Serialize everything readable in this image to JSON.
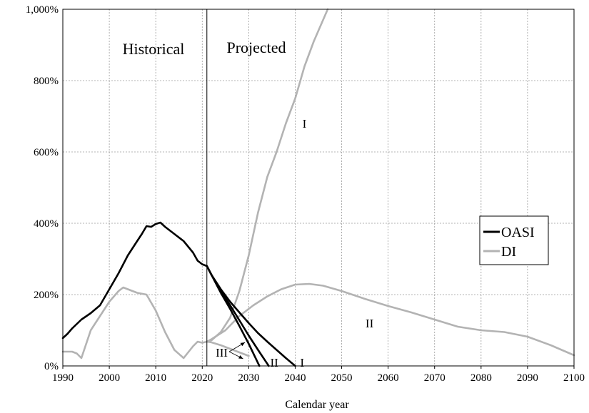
{
  "chart_data": {
    "type": "line",
    "title": "",
    "xlabel": "Calendar year",
    "ylabel": "",
    "xlim": [
      1990,
      2100
    ],
    "ylim": [
      0,
      1000
    ],
    "x_ticks": [
      "1990",
      "2000",
      "2010",
      "2020",
      "2030",
      "2040",
      "2050",
      "2060",
      "2070",
      "2080",
      "2090",
      "2100"
    ],
    "y_ticks": [
      "0%",
      "200%",
      "400%",
      "600%",
      "800%",
      "1,000%"
    ],
    "grid": true,
    "legend_position": "right",
    "legend": [
      "OASI",
      "DI"
    ],
    "region_labels": [
      "Historical",
      "Projected"
    ],
    "divider_year": 2021,
    "colors": {
      "OASI": "#000000",
      "DI": "#b3b3b3"
    },
    "series": [
      {
        "name": "OASI",
        "alternative": "historical",
        "x": [
          1990,
          1991,
          1992,
          1994,
          1996,
          1998,
          2000,
          2002,
          2004,
          2006,
          2007,
          2008,
          2009,
          2010,
          2011,
          2012,
          2014,
          2016,
          2018,
          2019,
          2020,
          2021
        ],
        "y": [
          78,
          90,
          105,
          130,
          148,
          170,
          215,
          260,
          310,
          350,
          370,
          392,
          390,
          398,
          402,
          390,
          370,
          350,
          318,
          295,
          285,
          280
        ]
      },
      {
        "name": "OASI",
        "alternative": "I",
        "label": "I",
        "x": [
          2021,
          2022,
          2024,
          2026,
          2028,
          2030,
          2032,
          2034,
          2036,
          2038,
          2040
        ],
        "y": [
          280,
          255,
          215,
          180,
          150,
          120,
          92,
          68,
          45,
          22,
          0
        ]
      },
      {
        "name": "OASI",
        "alternative": "II",
        "label": "II",
        "x": [
          2021,
          2022,
          2024,
          2026,
          2028,
          2030,
          2032,
          2034.3
        ],
        "y": [
          280,
          255,
          210,
          170,
          128,
          85,
          45,
          0
        ]
      },
      {
        "name": "OASI",
        "alternative": "III",
        "x": [
          2021,
          2022,
          2024,
          2026,
          2028,
          2030,
          2032.3
        ],
        "y": [
          280,
          255,
          205,
          160,
          112,
          62,
          0
        ]
      },
      {
        "name": "DI",
        "alternative": "historical",
        "x": [
          1990,
          1991,
          1992,
          1993,
          1994,
          1996,
          1998,
          2000,
          2002,
          2003,
          2004,
          2006,
          2008,
          2010,
          2012,
          2014,
          2016,
          2018,
          2019,
          2020,
          2021
        ],
        "y": [
          40,
          40,
          40,
          35,
          22,
          100,
          140,
          180,
          210,
          220,
          215,
          205,
          200,
          155,
          95,
          45,
          22,
          55,
          68,
          65,
          68
        ]
      },
      {
        "name": "DI",
        "alternative": "I",
        "label": "I",
        "x": [
          2021,
          2022,
          2024,
          2026,
          2028,
          2030,
          2032,
          2034,
          2036,
          2038,
          2040,
          2042,
          2044,
          2046,
          2047
        ],
        "y": [
          68,
          72,
          95,
          135,
          210,
          310,
          430,
          530,
          600,
          680,
          750,
          840,
          910,
          970,
          1000
        ]
      },
      {
        "name": "DI",
        "alternative": "II",
        "label": "II",
        "x": [
          2021,
          2022,
          2025,
          2028,
          2031,
          2034,
          2037,
          2040,
          2043,
          2046,
          2050,
          2055,
          2060,
          2065,
          2070,
          2075,
          2080,
          2085,
          2090,
          2095,
          2100
        ],
        "y": [
          68,
          75,
          100,
          140,
          170,
          195,
          215,
          228,
          230,
          225,
          210,
          188,
          168,
          150,
          130,
          110,
          100,
          95,
          82,
          58,
          30
        ]
      },
      {
        "name": "DI",
        "alternative": "III",
        "label": "III",
        "x": [
          2021,
          2022,
          2024,
          2026,
          2028,
          2030
        ],
        "y": [
          68,
          66,
          58,
          48,
          38,
          28
        ]
      }
    ],
    "annotations": [
      {
        "text": "I",
        "series": "DI",
        "x": 2042,
        "y": 680
      },
      {
        "text": "II",
        "series": "DI",
        "x": 2056,
        "y": 120
      },
      {
        "text": "III",
        "series": "OASI/DI",
        "x": 2025.5,
        "y": 38
      },
      {
        "text": "II",
        "series": "OASI",
        "x": 2035.5,
        "y": 10
      },
      {
        "text": "I",
        "series": "OASI",
        "x": 2041.5,
        "y": 10
      }
    ]
  }
}
